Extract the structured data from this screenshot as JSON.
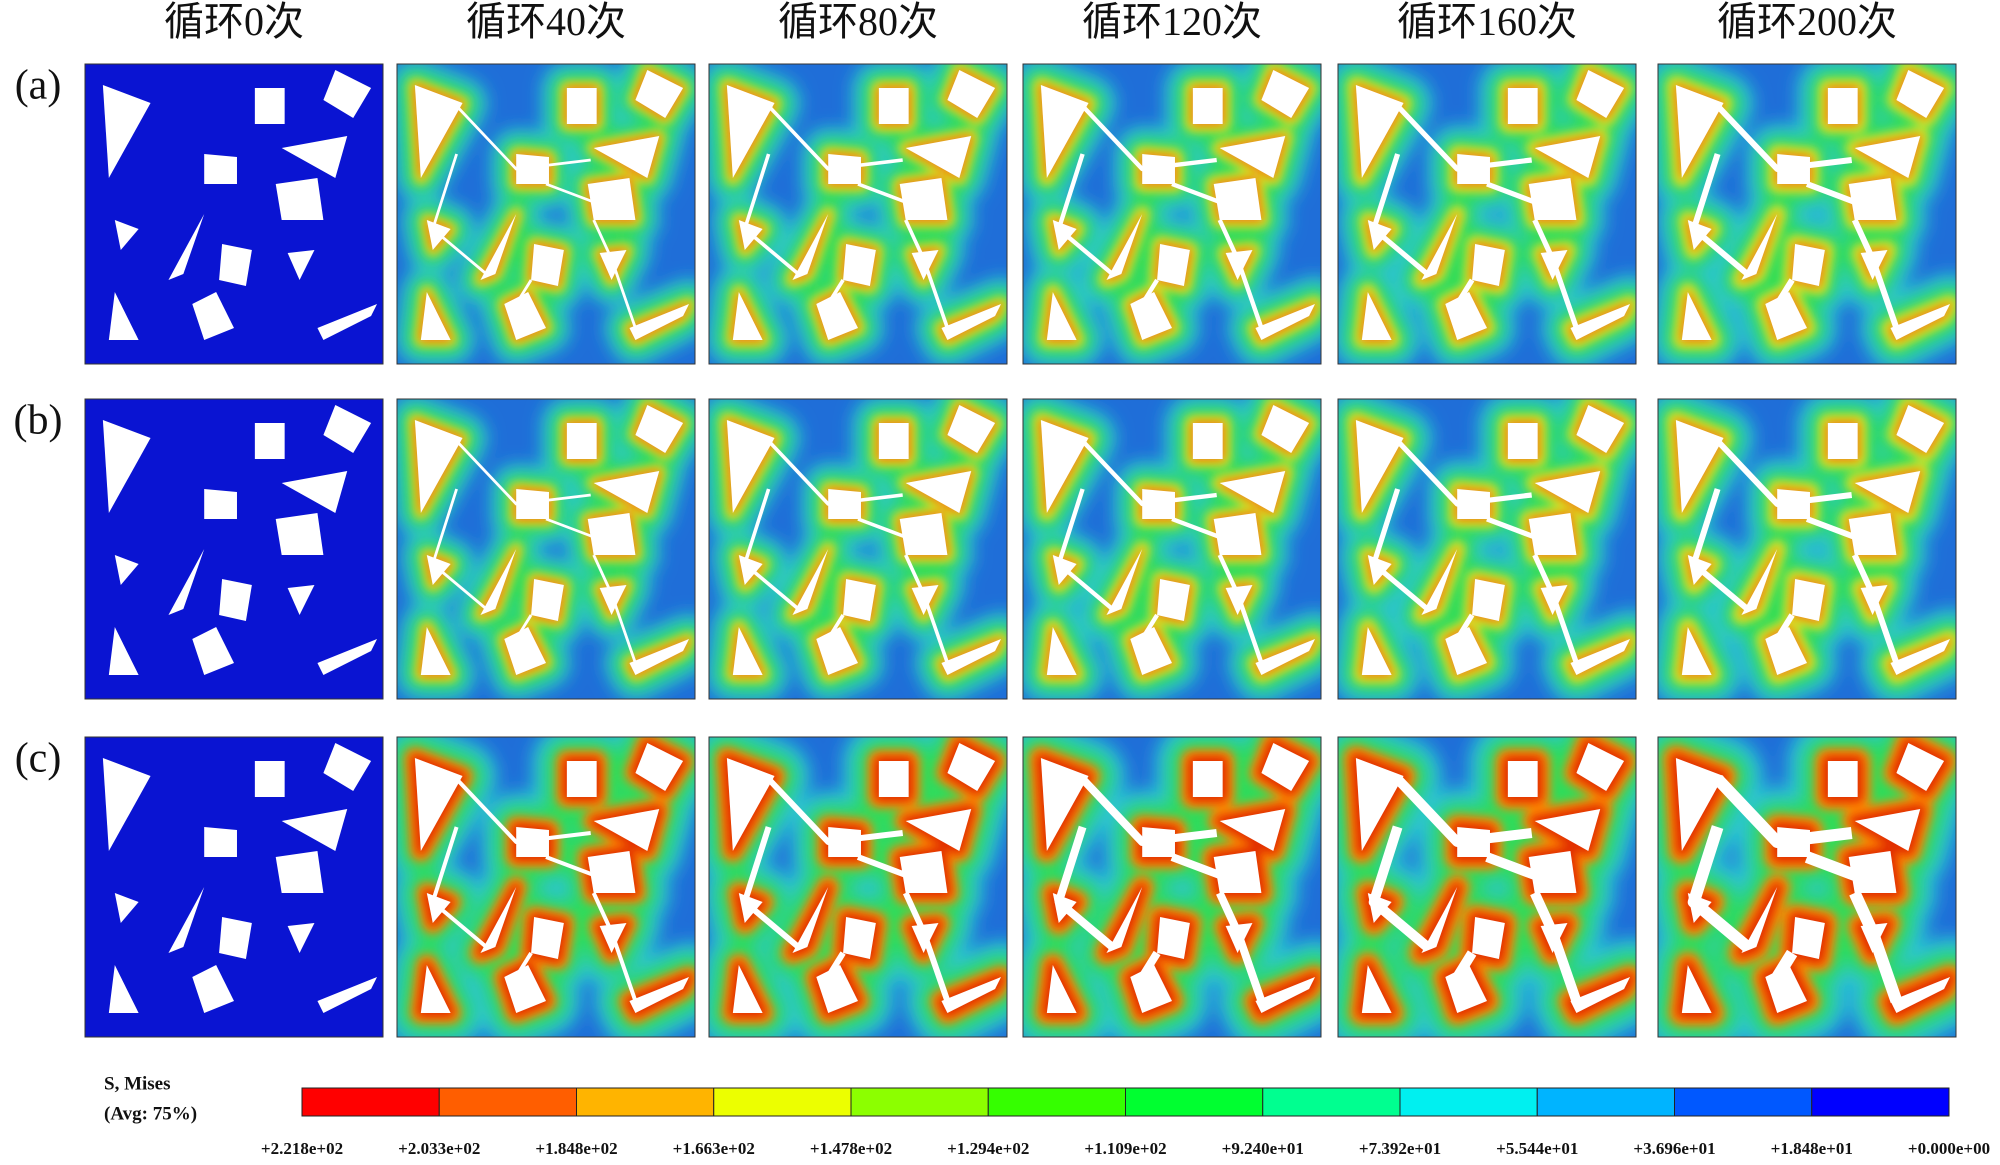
{
  "column_headers": [
    "循环0次",
    "循环40次",
    "循环80次",
    "循环120次",
    "循环160次",
    "循环200次"
  ],
  "row_labels": [
    "(a)",
    "(b)",
    "(c)"
  ],
  "legend": {
    "title": "S, Mises",
    "subtitle": "(Avg: 75%)",
    "colors": [
      "#ff0000",
      "#ff5e00",
      "#ffb400",
      "#ecff00",
      "#8cff00",
      "#35ff00",
      "#00ff30",
      "#00ff90",
      "#00f0f0",
      "#00b4ff",
      "#0058ff",
      "#0000ff"
    ],
    "labels": [
      "+2.218e+02",
      "+2.033e+02",
      "+1.848e+02",
      "+1.663e+02",
      "+1.478e+02",
      "+1.294e+02",
      "+1.109e+02",
      "+9.240e+01",
      "+7.392e+01",
      "+5.544e+01",
      "+3.696e+01",
      "+1.848e+01",
      "+0.000e+00"
    ]
  }
}
